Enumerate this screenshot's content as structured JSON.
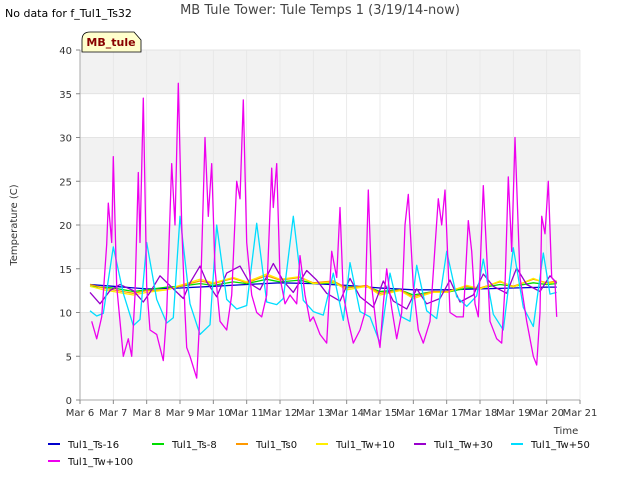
{
  "figure": {
    "no_data_text": "No data for f_Tul1_Ts32",
    "box_label": "MB_tule"
  },
  "chart_data": {
    "type": "line",
    "title": "MB Tule Tower: Tule Temps 1 (3/19/14-now)",
    "xlabel": "Time",
    "ylabel": "Temperature (C)",
    "xlim": [
      6,
      21
    ],
    "ylim": [
      0,
      40
    ],
    "x_ticks": [
      6,
      7,
      8,
      9,
      10,
      11,
      12,
      13,
      14,
      15,
      16,
      17,
      18,
      19,
      20,
      21
    ],
    "x_tick_labels": [
      "Mar 6",
      "Mar 7",
      "Mar 8",
      "Mar 9",
      "Mar 10",
      "Mar 11",
      "Mar 12",
      "Mar 13",
      "Mar 14",
      "Mar 15",
      "Mar 16",
      "Mar 17",
      "Mar 18",
      "Mar 19",
      "Mar 20",
      "Mar 21"
    ],
    "y_ticks": [
      0,
      5,
      10,
      15,
      20,
      25,
      30,
      35,
      40
    ],
    "y_tick_labels": [
      "0",
      "5",
      "10",
      "15",
      "20",
      "25",
      "30",
      "35",
      "40"
    ],
    "grid": true,
    "legend_position": "bottom",
    "series": [
      {
        "name": "Tul1_Ts-16",
        "color": "#0000cc",
        "x": [
          6.3,
          7,
          8,
          9,
          10,
          11,
          12,
          13,
          14,
          15,
          16,
          17,
          18,
          19,
          20,
          20.3
        ],
        "y": [
          13.2,
          13.0,
          12.7,
          12.8,
          13.0,
          13.2,
          13.4,
          13.3,
          13.1,
          12.8,
          12.6,
          12.6,
          12.7,
          12.8,
          12.9,
          12.9
        ]
      },
      {
        "name": "Tul1_Ts-8",
        "color": "#00dd00",
        "x": [
          6.3,
          7,
          7.6,
          8,
          8.6,
          9,
          9.6,
          10,
          10.6,
          11,
          11.6,
          12,
          12.6,
          13,
          13.6,
          14,
          14.6,
          15,
          15.6,
          16,
          16.6,
          17,
          17.6,
          18,
          18.6,
          19,
          19.6,
          20,
          20.3
        ],
        "y": [
          13.0,
          12.8,
          12.4,
          12.6,
          12.9,
          13.0,
          13.3,
          13.1,
          13.5,
          13.3,
          13.8,
          13.5,
          13.7,
          13.3,
          13.4,
          12.9,
          13.0,
          12.4,
          12.6,
          12.0,
          12.4,
          12.3,
          12.8,
          12.8,
          13.2,
          13.0,
          13.4,
          13.2,
          13.3
        ]
      },
      {
        "name": "Tul1_Ts0",
        "color": "#ff9900",
        "x": [
          6.3,
          6.7,
          7,
          7.6,
          8,
          8.6,
          9,
          9.6,
          10,
          10.6,
          11,
          11.6,
          12,
          12.6,
          13,
          13.6,
          14,
          14.6,
          15,
          15.6,
          16,
          16.6,
          17,
          17.6,
          18,
          18.6,
          19,
          19.6,
          20,
          20.3
        ],
        "y": [
          13.2,
          12.8,
          12.6,
          12.2,
          12.5,
          12.6,
          13.0,
          13.6,
          13.3,
          13.9,
          13.4,
          14.2,
          13.7,
          14.0,
          13.4,
          13.6,
          12.8,
          13.1,
          12.2,
          12.6,
          11.8,
          12.4,
          12.4,
          13.0,
          12.8,
          13.5,
          13.0,
          13.8,
          13.4,
          13.6
        ]
      },
      {
        "name": "Tul1_Tw+10",
        "color": "#ffee00",
        "x": [
          6.3,
          6.7,
          7,
          7.6,
          8,
          8.6,
          9,
          9.6,
          10,
          10.6,
          11,
          11.6,
          12,
          12.6,
          13,
          13.6,
          14,
          14.6,
          15,
          15.6,
          16,
          16.6,
          17,
          17.6,
          18,
          18.6,
          19,
          19.6,
          20,
          20.3
        ],
        "y": [
          13.0,
          12.6,
          12.4,
          12.0,
          12.3,
          12.6,
          13.1,
          13.8,
          13.4,
          14.0,
          13.5,
          14.4,
          13.8,
          14.1,
          13.3,
          13.5,
          12.6,
          13.0,
          12.0,
          12.5,
          11.6,
          12.3,
          12.3,
          13.1,
          12.7,
          13.6,
          12.9,
          13.9,
          13.3,
          13.5
        ]
      },
      {
        "name": "Tul1_Tw+30",
        "color": "#9900cc",
        "x": [
          6.3,
          6.6,
          6.9,
          7.2,
          7.6,
          7.9,
          8.1,
          8.4,
          8.8,
          9.1,
          9.3,
          9.6,
          9.8,
          10.1,
          10.4,
          10.8,
          11.1,
          11.4,
          11.8,
          12.1,
          12.4,
          12.8,
          13.1,
          13.4,
          13.8,
          14.1,
          14.4,
          14.8,
          15.1,
          15.4,
          15.8,
          16.1,
          16.4,
          16.8,
          17.1,
          17.4,
          17.8,
          18.1,
          18.4,
          18.8,
          19.1,
          19.4,
          19.8,
          20.1,
          20.3
        ],
        "y": [
          12.3,
          11.0,
          12.5,
          13.2,
          12.5,
          11.2,
          12.3,
          14.2,
          12.7,
          11.6,
          13.4,
          15.3,
          13.5,
          11.8,
          14.5,
          15.3,
          13.3,
          12.6,
          15.6,
          13.6,
          12.3,
          14.8,
          13.7,
          12.2,
          11.3,
          13.9,
          11.8,
          10.6,
          13.6,
          11.3,
          10.4,
          12.7,
          11.0,
          11.6,
          13.7,
          11.2,
          12.0,
          14.4,
          13.0,
          12.2,
          15.1,
          13.2,
          12.4,
          14.2,
          13.4
        ]
      },
      {
        "name": "Tul1_Tw+50",
        "color": "#00ddff",
        "x": [
          6.3,
          6.5,
          6.7,
          7.0,
          7.3,
          7.6,
          7.8,
          8.0,
          8.3,
          8.6,
          8.8,
          9.0,
          9.3,
          9.6,
          9.9,
          10.1,
          10.4,
          10.7,
          11.0,
          11.3,
          11.6,
          11.9,
          12.1,
          12.4,
          12.7,
          13.0,
          13.3,
          13.6,
          13.9,
          14.1,
          14.4,
          14.7,
          15.0,
          15.3,
          15.6,
          15.9,
          16.1,
          16.4,
          16.7,
          17.0,
          17.3,
          17.6,
          17.9,
          18.1,
          18.4,
          18.7,
          19.0,
          19.3,
          19.6,
          19.9,
          20.1,
          20.3
        ],
        "y": [
          10.2,
          9.6,
          9.9,
          17.5,
          12.2,
          8.5,
          9.2,
          18.0,
          11.5,
          8.8,
          9.4,
          21.0,
          11.0,
          7.5,
          8.6,
          20.0,
          11.5,
          10.4,
          10.8,
          20.2,
          11.2,
          10.9,
          11.6,
          21.0,
          11.4,
          10.1,
          9.7,
          14.5,
          9.1,
          15.7,
          10.1,
          9.5,
          6.5,
          14.5,
          9.6,
          9.0,
          15.4,
          10.2,
          9.3,
          17.0,
          11.8,
          10.7,
          11.9,
          16.1,
          9.8,
          8.0,
          17.4,
          10.6,
          8.4,
          16.8,
          12.1,
          12.3
        ]
      },
      {
        "name": "Tul1_Tw+100",
        "color": "#ee00ee",
        "x": [
          6.35,
          6.5,
          6.65,
          6.8,
          6.85,
          6.95,
          7.0,
          7.1,
          7.3,
          7.45,
          7.55,
          7.65,
          7.75,
          7.8,
          7.9,
          8.0,
          8.1,
          8.3,
          8.5,
          8.6,
          8.75,
          8.85,
          8.95,
          9.05,
          9.15,
          9.2,
          9.3,
          9.5,
          9.6,
          9.75,
          9.85,
          9.95,
          10.05,
          10.2,
          10.4,
          10.55,
          10.7,
          10.8,
          10.9,
          11.0,
          11.15,
          11.3,
          11.45,
          11.6,
          11.75,
          11.8,
          11.9,
          12.0,
          12.15,
          12.3,
          12.5,
          12.6,
          12.75,
          12.9,
          13.0,
          13.2,
          13.4,
          13.55,
          13.7,
          13.8,
          13.9,
          14.05,
          14.2,
          14.4,
          14.55,
          14.65,
          14.75,
          14.9,
          15.0,
          15.1,
          15.2,
          15.35,
          15.5,
          15.65,
          15.75,
          15.85,
          16.0,
          16.15,
          16.3,
          16.5,
          16.65,
          16.75,
          16.85,
          16.95,
          17.1,
          17.3,
          17.5,
          17.65,
          17.75,
          17.85,
          17.95,
          18.1,
          18.3,
          18.5,
          18.65,
          18.75,
          18.85,
          18.95,
          19.05,
          19.2,
          19.4,
          19.6,
          19.7,
          19.8,
          19.85,
          19.95,
          20.05,
          20.15,
          20.25,
          20.3
        ],
        "y": [
          9.0,
          7.0,
          9.5,
          17.8,
          22.5,
          18.0,
          27.8,
          13.0,
          5.0,
          7.0,
          5.0,
          12.0,
          26.0,
          18.0,
          34.5,
          13.0,
          8.0,
          7.5,
          4.5,
          10.0,
          27.0,
          20.0,
          36.2,
          20.0,
          10.0,
          6.0,
          5.0,
          2.5,
          10.0,
          30.0,
          21.0,
          27.0,
          15.0,
          9.0,
          8.0,
          12.0,
          25.0,
          23.0,
          34.3,
          18.0,
          12.0,
          10.0,
          9.5,
          12.0,
          26.5,
          22.0,
          27.0,
          14.0,
          11.0,
          12.0,
          11.0,
          16.5,
          12.0,
          9.0,
          9.5,
          7.5,
          6.5,
          17.0,
          14.0,
          22.0,
          12.0,
          9.0,
          6.5,
          8.0,
          10.0,
          24.0,
          13.0,
          8.0,
          6.0,
          11.0,
          15.0,
          10.5,
          7.0,
          10.0,
          20.0,
          23.5,
          13.0,
          8.0,
          6.5,
          9.0,
          17.5,
          23.0,
          20.0,
          24.0,
          10.0,
          9.5,
          9.5,
          20.5,
          17.0,
          11.0,
          9.5,
          24.5,
          9.0,
          7.0,
          6.5,
          13.0,
          25.5,
          17.0,
          30.0,
          14.0,
          9.0,
          5.0,
          4.0,
          10.0,
          21.0,
          19.0,
          25.0,
          14.0,
          13.5,
          9.5
        ]
      }
    ]
  }
}
